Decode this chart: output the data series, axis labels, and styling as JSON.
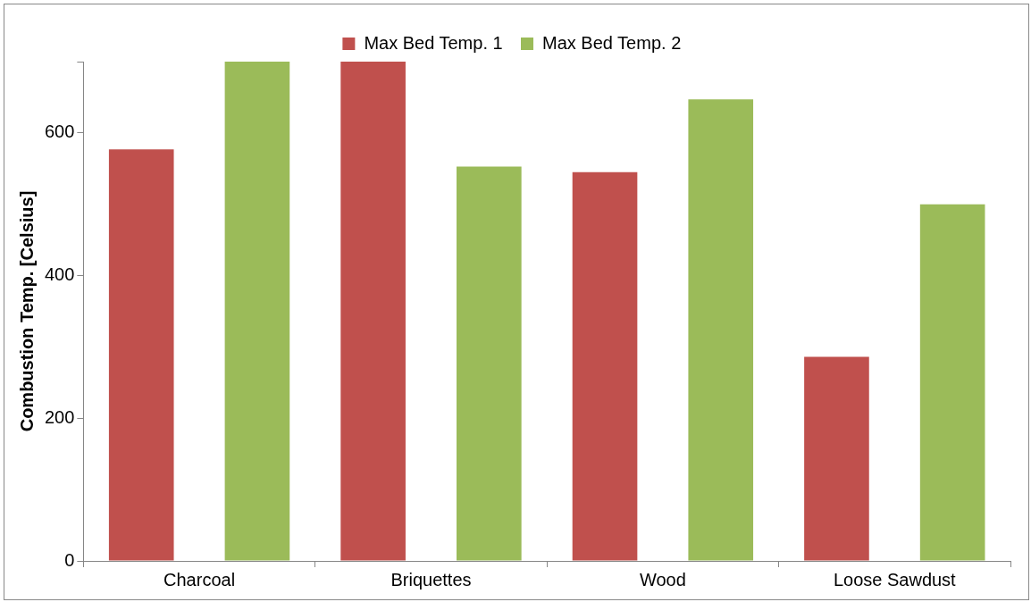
{
  "chart_data": {
    "type": "bar",
    "ylabel": "Combustion Temp. [Celsius]",
    "categories": [
      "Charcoal",
      "Briquettes",
      "Wood",
      "Loose Sawdust"
    ],
    "series": [
      {
        "name": "Max Bed Temp. 1",
        "color": "#c0504d",
        "values": [
          577,
          700,
          545,
          286
        ]
      },
      {
        "name": "Max Bed Temp. 2",
        "color": "#9bbb59",
        "values": [
          700,
          553,
          647,
          500
        ]
      }
    ],
    "ylim": [
      0,
      700
    ],
    "yticks": [
      0,
      200,
      400,
      600,
      {
        "value": 700,
        "label": null
      }
    ],
    "grid": false,
    "legend": "top"
  }
}
